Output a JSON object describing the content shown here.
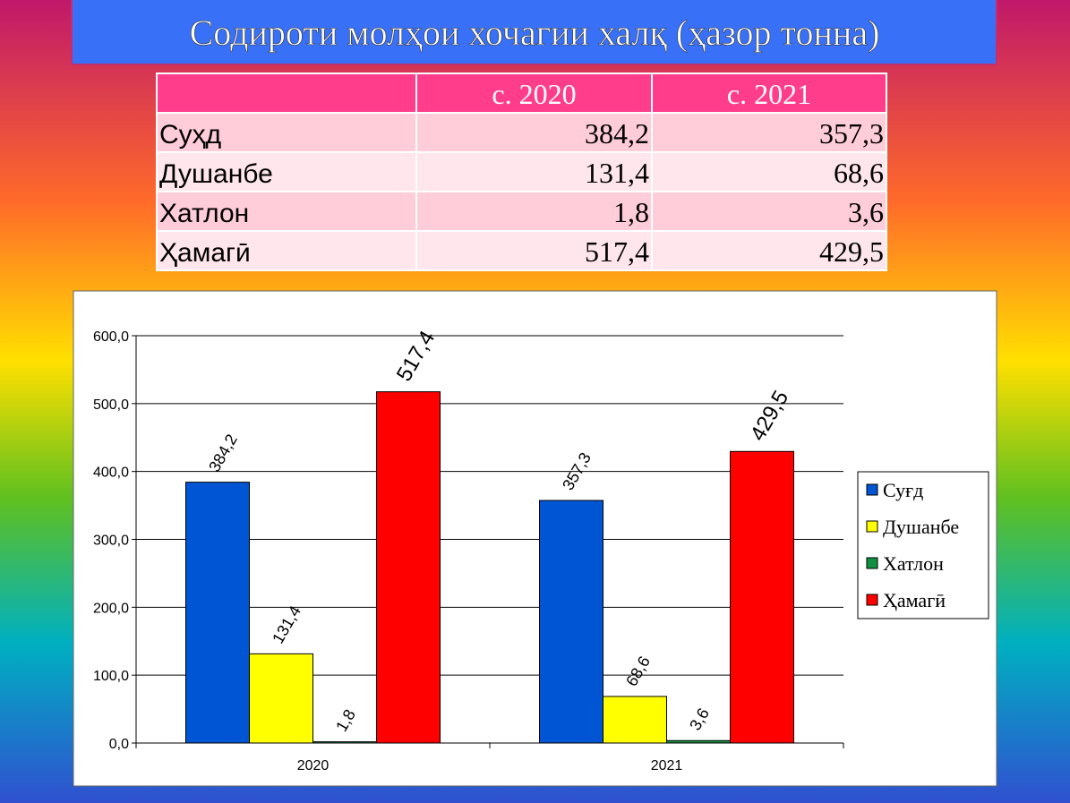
{
  "header": {
    "title": "Содироти молҳои хочагии халқ (ҳазор тонна)"
  },
  "table": {
    "columns": [
      "с. 2020",
      "с. 2021"
    ],
    "rows": [
      [
        "Суҳд",
        "384,2",
        "357,3"
      ],
      [
        "Душанбе",
        "131,4",
        "68,6"
      ],
      [
        "Хатлон",
        "1,8",
        "3,6"
      ],
      [
        "Ҳамагӣ",
        "517,4",
        "429,5"
      ]
    ]
  },
  "chart_data": {
    "type": "bar",
    "categories": [
      "2020",
      "2021"
    ],
    "series": [
      {
        "name": "Суғд",
        "color": "#0055d4",
        "values": [
          384.2,
          357.3
        ],
        "value_labels": [
          "384,2",
          "357,3"
        ]
      },
      {
        "name": "Душанбе",
        "color": "#ffff00",
        "values": [
          131.4,
          68.6
        ],
        "value_labels": [
          "131,4",
          "68,6"
        ]
      },
      {
        "name": "Хатлон",
        "color": "#109040",
        "values": [
          1.8,
          3.6
        ],
        "value_labels": [
          "1,8",
          "3,6"
        ]
      },
      {
        "name": "Ҳамагӣ",
        "color": "#ff0000",
        "values": [
          517.4,
          429.5
        ],
        "value_labels": [
          "517,4",
          "429,5"
        ]
      }
    ],
    "ylim": [
      0,
      600
    ],
    "yticks": [
      {
        "value": 0,
        "label": "0,0"
      },
      {
        "value": 100,
        "label": "100,0"
      },
      {
        "value": 200,
        "label": "200,0"
      },
      {
        "value": 300,
        "label": "300,0"
      },
      {
        "value": 400,
        "label": "400,0"
      },
      {
        "value": 500,
        "label": "500,0"
      },
      {
        "value": 600,
        "label": "600,0"
      }
    ],
    "grid": true,
    "legend": "right"
  }
}
